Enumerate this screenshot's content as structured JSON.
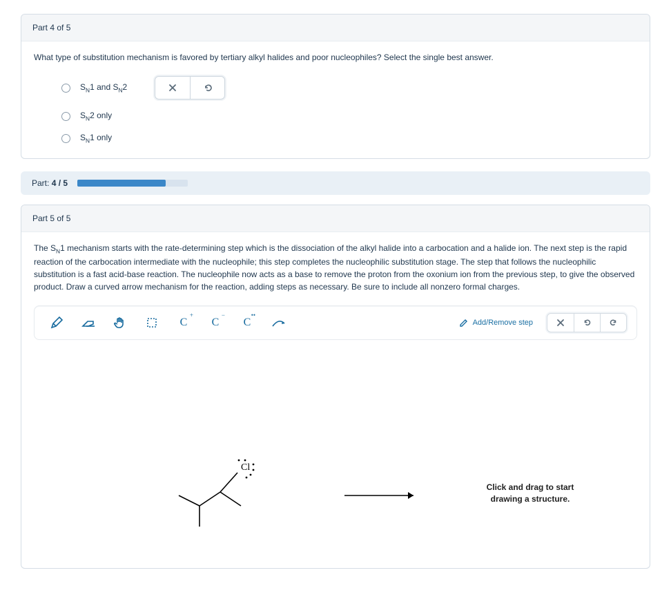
{
  "part4": {
    "header": "Part 4 of 5",
    "question_pre": "What type of substitution mechanism is favored by tertiary alkyl halides and poor nucleophiles? Select the single best answer.",
    "options": {
      "a_pre": "S",
      "a_num1": "1",
      "a_and": " and S",
      "a_num2": "2",
      "b_pre": "S",
      "b_num": "2",
      "b_post": " only",
      "c_pre": "S",
      "c_num": "1",
      "c_post": " only"
    }
  },
  "progress": {
    "label_pre": "Part: ",
    "label_val": "4 / 5",
    "pct": 80
  },
  "part5": {
    "header": "Part 5 of 5",
    "text_pre": "The S",
    "text_num": "1",
    "text_post": " mechanism starts with the rate-determining step which is the dissociation of the alkyl halide into a carbocation and a halide ion. The next step is the rapid reaction of the carbocation intermediate with the nucleophile; this step completes the nucleophilic substitution stage. The step that follows the nucleophilic substitution is a fast acid-base reaction. The nucleophile now acts as a base to remove the proton from the oxonium ion from the previous step, to give the observed product. Draw a curved arrow mechanism for the reaction, adding steps as necessary. Be sure to include all nonzero formal charges.",
    "add_step": "Add/Remove step",
    "hint_l1": "Click and drag to start",
    "hint_l2": "drawing a structure.",
    "cl_label": "Cl"
  },
  "tools": {
    "cplus": "C",
    "cminus": "C",
    "cdots": "C"
  },
  "colors": {
    "tool": "#166a9e"
  }
}
